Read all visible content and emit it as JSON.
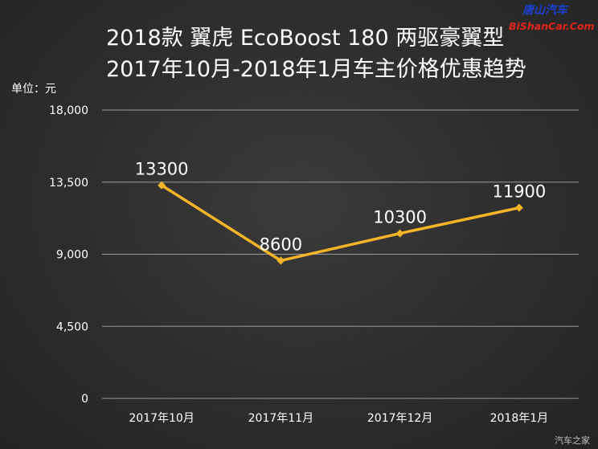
{
  "watermark": {
    "top_text": "唐山汽车",
    "url_text": "BiShanCar.Com",
    "bottom_right": "汽车之家"
  },
  "chart_data": {
    "type": "line",
    "title": "2018款 翼虎 EcoBoost 180 两驱豪翼型",
    "subtitle": "2017年10月-2018年1月车主价格优惠趋势",
    "unit_label": "单位：元",
    "categories": [
      "2017年10月",
      "2017年11月",
      "2017年12月",
      "2018年1月"
    ],
    "series": [
      {
        "values": [
          13300,
          8600,
          10300,
          11900
        ]
      }
    ],
    "data_labels": [
      "13300",
      "8600",
      "10300",
      "11900"
    ],
    "y_ticks": [
      0,
      4500,
      9000,
      13500,
      18000
    ],
    "y_tick_labels": [
      "0",
      "4,500",
      "9,000",
      "13,500",
      "18,000"
    ],
    "ylim": [
      0,
      18000
    ],
    "grid": true,
    "colors": {
      "line": "#f5b428",
      "grid": "#9a9a9a",
      "text": "#ffffff"
    }
  }
}
